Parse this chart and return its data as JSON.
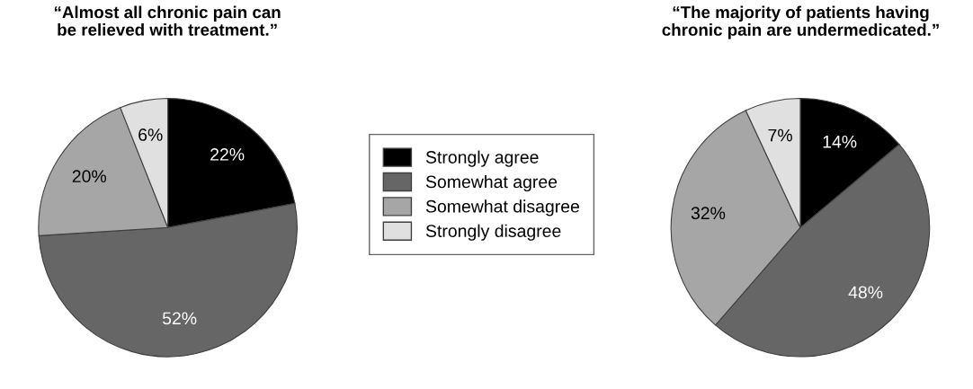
{
  "chart_data": [
    {
      "type": "pie",
      "title": "“Almost all chronic pain can\nbe relieved with treatment.”",
      "categories": [
        "Strongly agree",
        "Somewhat agree",
        "Somewhat disagree",
        "Strongly disagree"
      ],
      "values": [
        22,
        52,
        20,
        6
      ],
      "value_labels": [
        "22%",
        "52%",
        "20%",
        "6%"
      ],
      "colors": [
        "#000000",
        "#666666",
        "#a6a6a6",
        "#e0e0e0"
      ],
      "legend": "right"
    },
    {
      "type": "pie",
      "title": "“The majority of patients having\nchronic pain are undermedicated.”",
      "categories": [
        null,
        null,
        null,
        null
      ],
      "values": [
        14,
        48,
        32,
        7
      ],
      "value_labels": [
        "14%",
        "48%",
        "32%",
        "7%"
      ],
      "colors": [
        "#000000",
        "#666666",
        "#a6a6a6",
        "#e0e0e0"
      ]
    }
  ]
}
